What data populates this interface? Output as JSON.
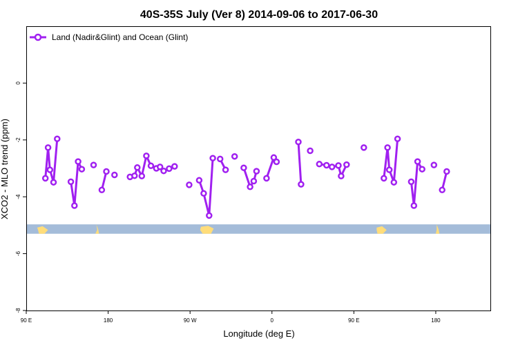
{
  "chart_data": {
    "type": "line",
    "title": "40S-35S July (Ver 8)   2014-09-06 to 2017-06-30",
    "xlabel": "Longitude (deg E)",
    "ylabel": "XCO2 - MLO trend (ppm)",
    "xlim": [
      90,
      600
    ],
    "ylim": [
      -8,
      2
    ],
    "x_ticks": [
      {
        "value": 90,
        "label": "90 E"
      },
      {
        "value": 180,
        "label": "180"
      },
      {
        "value": 270,
        "label": "90 W"
      },
      {
        "value": 360,
        "label": "0"
      },
      {
        "value": 450,
        "label": "90 E"
      },
      {
        "value": 540,
        "label": "180"
      }
    ],
    "y_ticks": [
      {
        "value": -8,
        "label": "-8"
      },
      {
        "value": -6,
        "label": "-6"
      },
      {
        "value": -4,
        "label": "-4"
      },
      {
        "value": -2,
        "label": "-2"
      },
      {
        "value": 0,
        "label": "0"
      }
    ],
    "grid": false,
    "legend_position": "top-left",
    "line_color": "#a020f0",
    "land_band": {
      "y_range": [
        -5.3,
        -4.97
      ],
      "ocean_color": "#a4bcd9",
      "land_color": "#ffdd7a"
    },
    "series": [
      {
        "name": "Land (Nadir&Glint) and Ocean (Glint)",
        "segments": [
          [
            [
              111,
              -3.35
            ],
            [
              114,
              -2.27
            ],
            [
              116,
              -3.05
            ],
            [
              120,
              -3.49
            ],
            [
              124,
              -1.96
            ]
          ],
          [
            [
              139,
              -3.47
            ],
            [
              143,
              -4.31
            ],
            [
              147,
              -2.76
            ],
            [
              151,
              -3.03
            ]
          ],
          [
            [
              164,
              -2.88
            ]
          ],
          [
            [
              173,
              -3.76
            ],
            [
              178,
              -3.11
            ]
          ],
          [
            [
              187,
              -3.23
            ]
          ],
          [
            [
              204,
              -3.3
            ],
            [
              209,
              -3.26
            ],
            [
              212,
              -2.97
            ],
            [
              217,
              -3.27
            ],
            [
              222,
              -2.56
            ],
            [
              227,
              -2.91
            ],
            [
              233,
              -3.0
            ],
            [
              237,
              -2.95
            ],
            [
              241,
              -3.09
            ],
            [
              247,
              -3.01
            ],
            [
              253,
              -2.93
            ]
          ],
          [
            [
              269,
              -3.58
            ]
          ],
          [
            [
              280,
              -3.42
            ],
            [
              285,
              -3.88
            ],
            [
              291,
              -4.66
            ],
            [
              295,
              -2.64
            ]
          ],
          [
            [
              303,
              -2.67
            ],
            [
              309,
              -3.05
            ]
          ],
          [
            [
              319,
              -2.58
            ]
          ],
          [
            [
              329,
              -2.98
            ],
            [
              336,
              -3.65
            ],
            [
              340,
              -3.45
            ],
            [
              343,
              -3.1
            ]
          ],
          [
            [
              354,
              -3.35
            ],
            [
              362,
              -2.62
            ],
            [
              365,
              -2.77
            ]
          ],
          [
            [
              389,
              -2.07
            ],
            [
              392,
              -3.56
            ]
          ],
          [
            [
              402,
              -2.38
            ]
          ],
          [
            [
              412,
              -2.85
            ],
            [
              420,
              -2.89
            ],
            [
              426,
              -2.95
            ],
            [
              433,
              -2.9
            ],
            [
              436,
              -3.27
            ],
            [
              442,
              -2.87
            ]
          ],
          [
            [
              461,
              -2.27
            ]
          ],
          [
            [
              483,
              -3.35
            ],
            [
              487,
              -2.27
            ],
            [
              489,
              -3.05
            ],
            [
              494,
              -3.49
            ],
            [
              498,
              -1.96
            ]
          ],
          [
            [
              513,
              -3.47
            ],
            [
              516,
              -4.31
            ],
            [
              520,
              -2.76
            ],
            [
              525,
              -3.03
            ]
          ],
          [
            [
              538,
              -2.88
            ]
          ],
          [
            [
              547,
              -3.76
            ],
            [
              552,
              -3.11
            ]
          ]
        ]
      }
    ]
  }
}
